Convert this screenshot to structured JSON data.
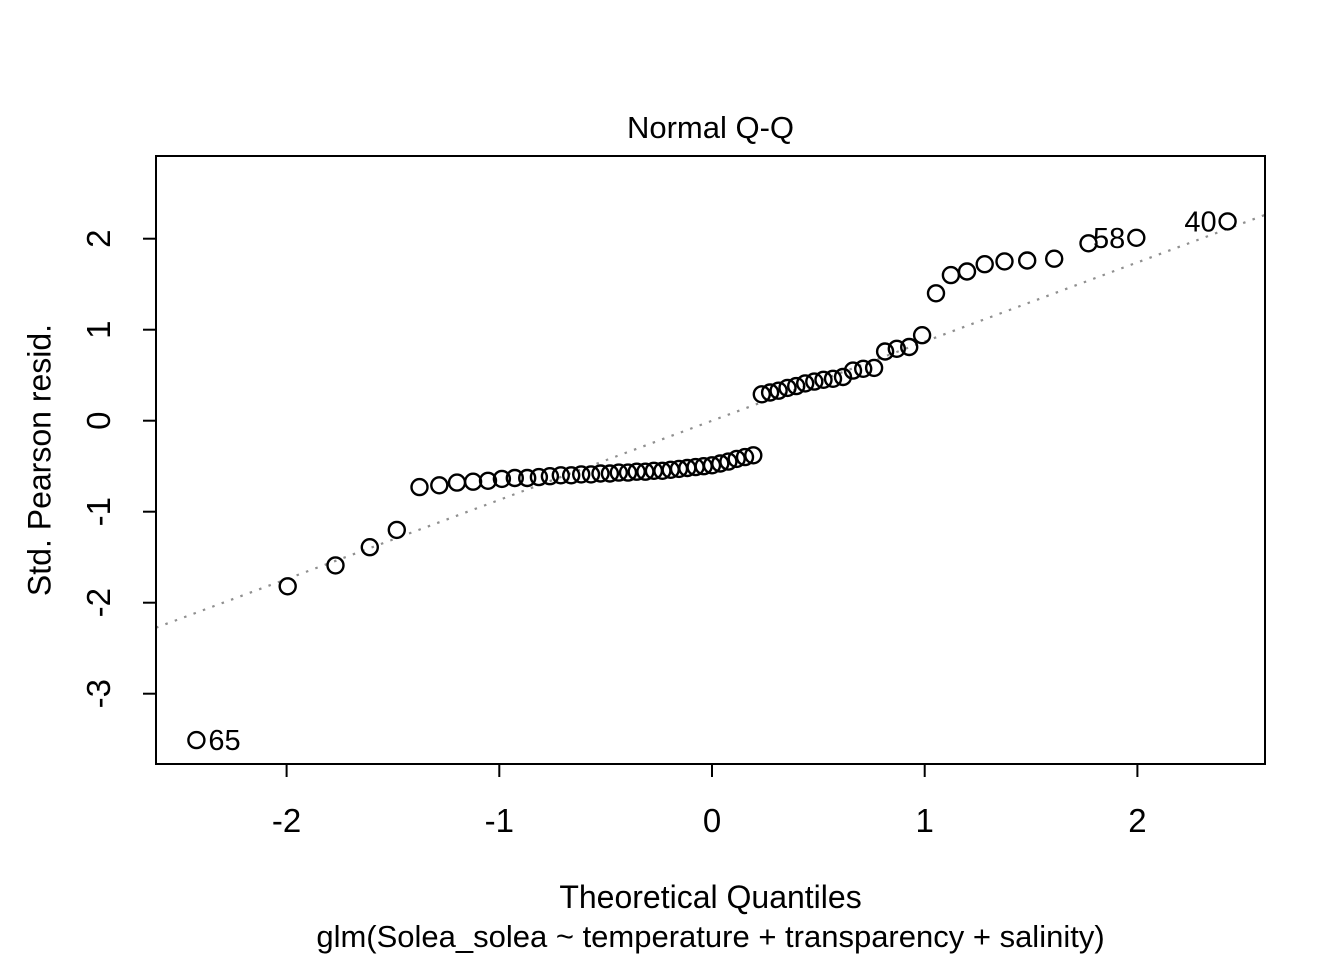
{
  "title": "Normal Q-Q",
  "xlabel": "Theoretical Quantiles",
  "sublabel": "glm(Solea_solea ~ temperature + transparency + salinity)",
  "ylabel": "Std. Pearson resid.",
  "colors": {
    "background": "#ffffff",
    "points": "#000000",
    "axis": "#000000",
    "text": "#000000",
    "reference_line": "#8f8f8f"
  },
  "chart_data": {
    "type": "scatter",
    "title": "Normal Q-Q",
    "xlabel": "Theoretical Quantiles",
    "sublabel": "glm(Solea_solea ~ temperature + transparency + salinity)",
    "ylabel": "Std. Pearson resid.",
    "x_ticks": [
      -2,
      -1,
      0,
      1,
      2
    ],
    "y_ticks": [
      2,
      1,
      0,
      -1,
      -2,
      -3
    ],
    "xlim": [
      -2.61,
      2.6
    ],
    "ylim": [
      -3.77,
      2.91
    ],
    "grid": false,
    "marker": "open-circle",
    "reference_line": {
      "type": "qqline",
      "style": "dotted",
      "slope": 0.87,
      "intercept": 0.0,
      "color": "#8f8f8f"
    },
    "points": [
      [
        -2.424,
        -3.51
      ],
      [
        -1.995,
        -1.82
      ],
      [
        -1.77,
        -1.59
      ],
      [
        -1.609,
        -1.39
      ],
      [
        -1.482,
        -1.2
      ],
      [
        -1.375,
        -0.73
      ],
      [
        -1.282,
        -0.71
      ],
      [
        -1.199,
        -0.68
      ],
      [
        -1.123,
        -0.67
      ],
      [
        -1.053,
        -0.66
      ],
      [
        -0.988,
        -0.64
      ],
      [
        -0.927,
        -0.63
      ],
      [
        -0.869,
        -0.63
      ],
      [
        -0.814,
        -0.62
      ],
      [
        -0.762,
        -0.61
      ],
      [
        -0.711,
        -0.6
      ],
      [
        -0.662,
        -0.6
      ],
      [
        -0.615,
        -0.59
      ],
      [
        -0.569,
        -0.59
      ],
      [
        -0.524,
        -0.58
      ],
      [
        -0.48,
        -0.58
      ],
      [
        -0.438,
        -0.57
      ],
      [
        -0.395,
        -0.57
      ],
      [
        -0.354,
        -0.56
      ],
      [
        -0.313,
        -0.56
      ],
      [
        -0.273,
        -0.55
      ],
      [
        -0.233,
        -0.55
      ],
      [
        -0.194,
        -0.54
      ],
      [
        -0.155,
        -0.53
      ],
      [
        -0.116,
        -0.52
      ],
      [
        -0.077,
        -0.51
      ],
      [
        -0.039,
        -0.5
      ],
      [
        0.0,
        -0.49
      ],
      [
        0.039,
        -0.47
      ],
      [
        0.077,
        -0.45
      ],
      [
        0.116,
        -0.42
      ],
      [
        0.155,
        -0.4
      ],
      [
        0.194,
        -0.38
      ],
      [
        0.234,
        0.29
      ],
      [
        0.273,
        0.31
      ],
      [
        0.313,
        0.33
      ],
      [
        0.355,
        0.36
      ],
      [
        0.396,
        0.38
      ],
      [
        0.438,
        0.41
      ],
      [
        0.481,
        0.43
      ],
      [
        0.524,
        0.45
      ],
      [
        0.569,
        0.46
      ],
      [
        0.616,
        0.48
      ],
      [
        0.663,
        0.55
      ],
      [
        0.711,
        0.57
      ],
      [
        0.762,
        0.58
      ],
      [
        0.814,
        0.76
      ],
      [
        0.869,
        0.79
      ],
      [
        0.927,
        0.81
      ],
      [
        0.988,
        0.94
      ],
      [
        1.053,
        1.4
      ],
      [
        1.123,
        1.6
      ],
      [
        1.199,
        1.64
      ],
      [
        1.282,
        1.72
      ],
      [
        1.375,
        1.75
      ],
      [
        1.482,
        1.76
      ],
      [
        1.609,
        1.78
      ],
      [
        1.77,
        1.95
      ],
      [
        1.995,
        2.01
      ],
      [
        2.424,
        2.19
      ]
    ],
    "labeled_points": [
      {
        "label": "65",
        "x": -2.424,
        "y": -3.51,
        "side": "right"
      },
      {
        "label": "58",
        "x": 1.995,
        "y": 2.01,
        "side": "left"
      },
      {
        "label": "40",
        "x": 2.424,
        "y": 2.19,
        "side": "left"
      }
    ]
  }
}
